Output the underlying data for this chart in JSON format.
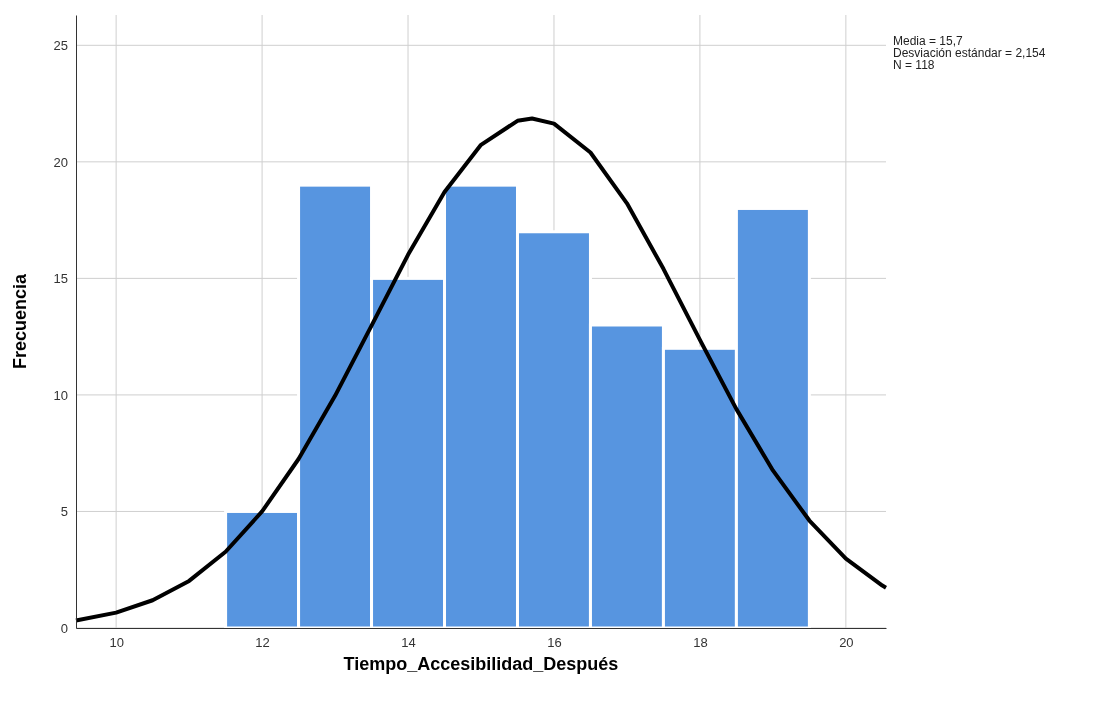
{
  "chart_data": {
    "type": "histogram",
    "xlabel": "Tiempo_Accesibilidad_Después",
    "ylabel": "Frecuencia",
    "bins": [
      11.5,
      12.5,
      13.5,
      14.5,
      15.5,
      16.5,
      17.5,
      18.5,
      19.5
    ],
    "values": [
      5,
      19,
      15,
      19,
      17,
      13,
      12,
      18
    ],
    "color": "#5795e0",
    "series": [
      {
        "type": "line",
        "color": "#000000",
        "x": [
          9.45,
          10,
          10.5,
          11,
          11.5,
          12,
          12.5,
          13,
          13.5,
          14,
          14.5,
          15,
          15.5,
          15.7,
          16,
          16.5,
          17,
          17.5,
          18,
          18.5,
          19,
          19.5,
          20,
          20.5,
          20.55
        ],
        "values": [
          0.32,
          0.66,
          1.19,
          2.02,
          3.27,
          5.0,
          7.25,
          9.96,
          12.97,
          16.01,
          18.71,
          20.73,
          21.76,
          21.86,
          21.64,
          20.4,
          18.22,
          15.41,
          12.36,
          9.39,
          6.76,
          4.61,
          2.98,
          1.82,
          1.73
        ]
      }
    ],
    "xlim": [
      9.45,
      20.55
    ],
    "ylim": [
      0,
      26.3
    ],
    "xticks": [
      10,
      12,
      14,
      16,
      18,
      20
    ],
    "yticks": [
      0,
      5,
      10,
      15,
      20,
      25
    ],
    "grid": true,
    "marker": "none",
    "line_style": "solid",
    "annotations": [
      "Media = 15,7",
      "Desviación estándar = 2,154",
      "N = 118"
    ]
  }
}
